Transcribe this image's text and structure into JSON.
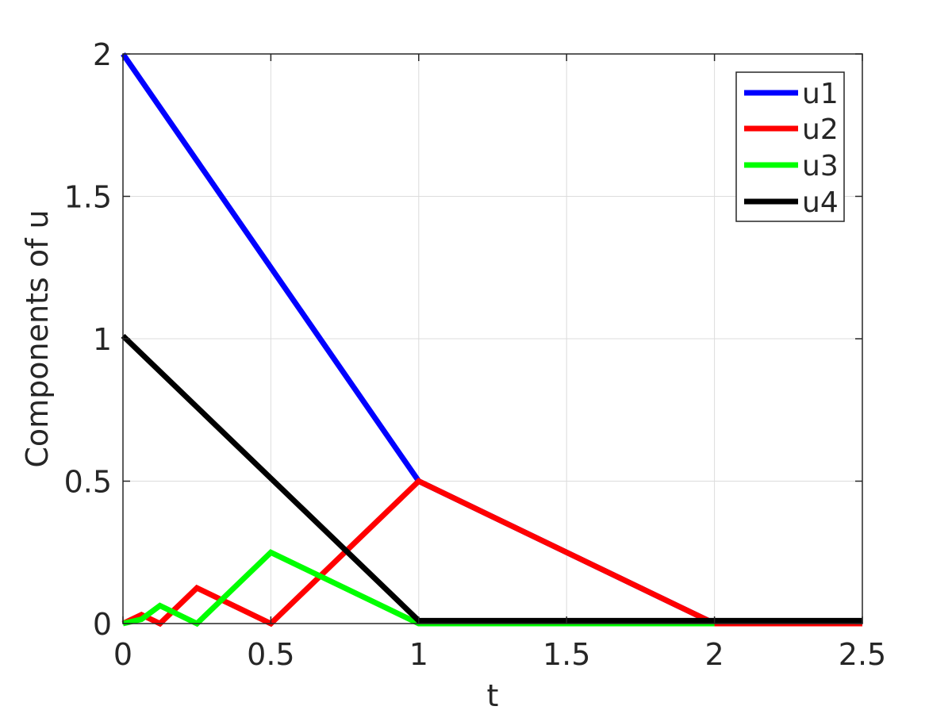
{
  "chart_data": {
    "type": "line",
    "title": "",
    "xlabel": "t",
    "ylabel": "Components of u",
    "xlim": [
      0,
      2.5
    ],
    "ylim": [
      0,
      2
    ],
    "xticks": [
      0,
      0.5,
      1,
      1.5,
      2,
      2.5
    ],
    "xtick_labels": [
      "0",
      "0.5",
      "1",
      "1.5",
      "2",
      "2.5"
    ],
    "yticks": [
      0,
      0.5,
      1,
      1.5,
      2
    ],
    "ytick_labels": [
      "0",
      "0.5",
      "1",
      "1.5",
      "2"
    ],
    "grid": true,
    "legend_position": "top-right",
    "series": [
      {
        "name": "u1",
        "color": "#0000ff",
        "x": [
          0,
          1,
          2,
          2.5
        ],
        "y": [
          2,
          0.5,
          0,
          0
        ]
      },
      {
        "name": "u2",
        "color": "#ff0000",
        "x": [
          0,
          0.0625,
          0.125,
          0.25,
          0.5,
          1,
          2,
          2.5
        ],
        "y": [
          0,
          0.031,
          0,
          0.125,
          0,
          0.5,
          0,
          0
        ]
      },
      {
        "name": "u3",
        "color": "#00ff00",
        "x": [
          0,
          0.0625,
          0.125,
          0.25,
          0.5,
          1,
          2
        ],
        "y": [
          0,
          0.015,
          0.063,
          0,
          0.25,
          0,
          0
        ]
      },
      {
        "name": "u4",
        "color": "#000000",
        "x": [
          0,
          1,
          2.5
        ],
        "y": [
          1.01,
          0.01,
          0.01
        ]
      }
    ]
  }
}
